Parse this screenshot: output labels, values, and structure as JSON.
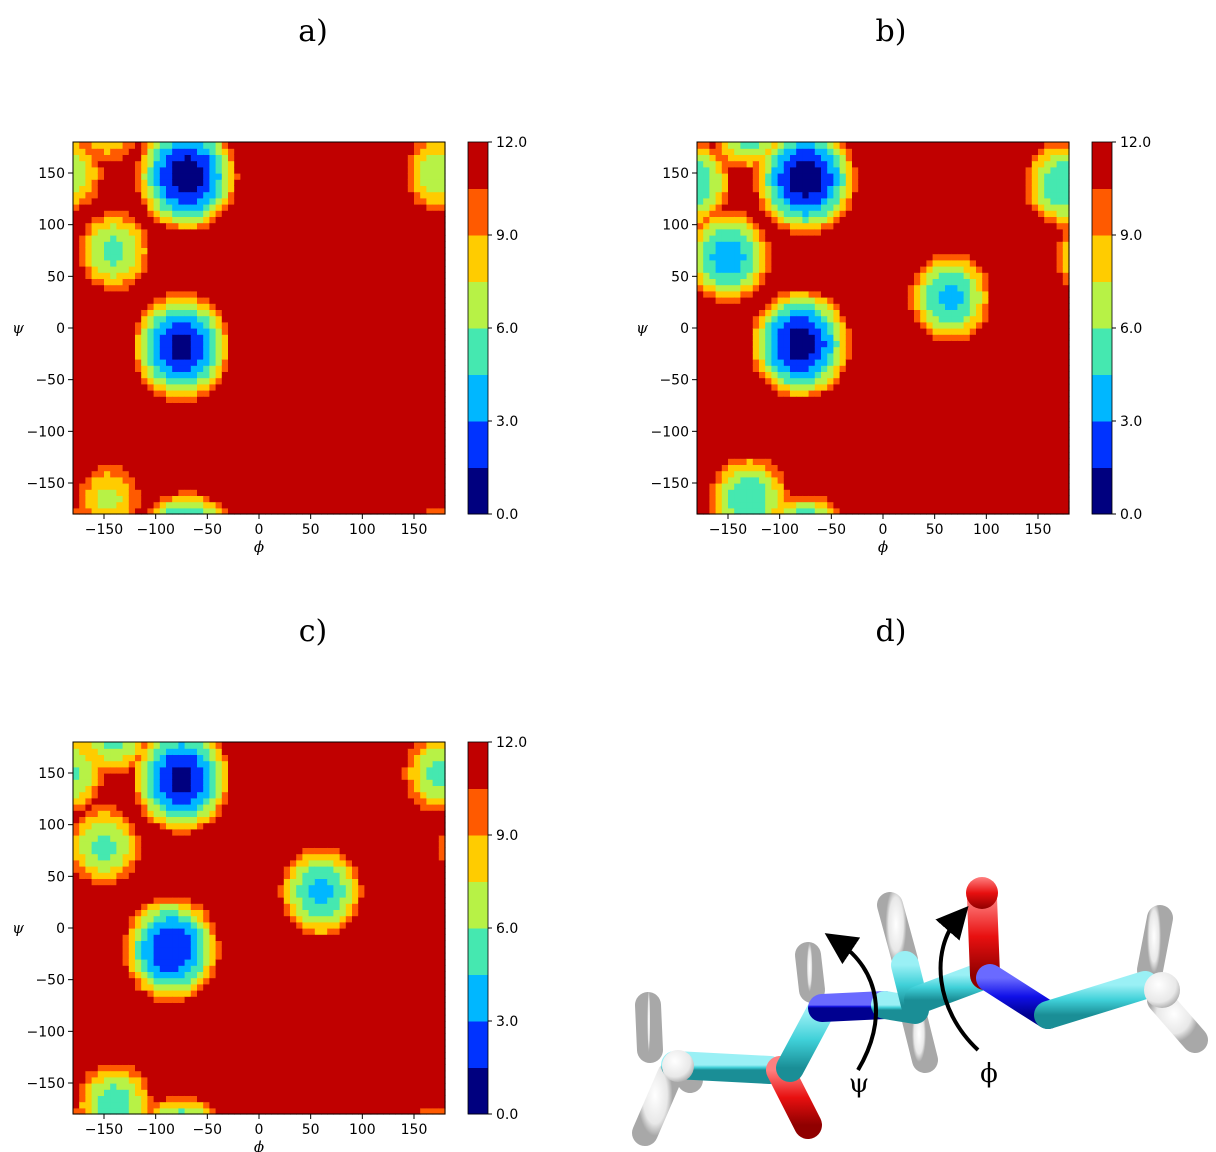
{
  "panel_labels": [
    "a)",
    "b)",
    "c)",
    "d)"
  ],
  "chart_data": [
    {
      "type": "heatmap",
      "panel": "a)",
      "xlabel": "ϕ",
      "ylabel": "ψ",
      "xlim": [
        -180,
        180
      ],
      "ylim": [
        -180,
        180
      ],
      "xticks": [
        -150,
        -100,
        -50,
        0,
        50,
        100,
        150
      ],
      "yticks": [
        -150,
        -100,
        -50,
        0,
        50,
        100,
        150
      ],
      "colorbar": {
        "min": 0.0,
        "max": 12.0,
        "levels": [
          0,
          1.5,
          3,
          4.5,
          6,
          7.5,
          9,
          10.5,
          12
        ],
        "tick_labels": [
          "0.0",
          "3.0",
          "6.0",
          "9.0",
          "12.0"
        ]
      },
      "background_value": 12.0,
      "basins": [
        {
          "phi": -70,
          "psi": 148,
          "min": 0.5
        },
        {
          "phi": -75,
          "psi": -18,
          "min": 1.0
        },
        {
          "phi": -140,
          "psi": 75,
          "min": 5.5
        },
        {
          "phi": 175,
          "psi": 150,
          "min": 6.0
        },
        {
          "phi": -145,
          "psi": -165,
          "min": 7.0
        }
      ]
    },
    {
      "type": "heatmap",
      "panel": "b)",
      "xlabel": "ϕ",
      "ylabel": "ψ",
      "xlim": [
        -180,
        180
      ],
      "ylim": [
        -180,
        180
      ],
      "xticks": [
        -150,
        -100,
        -50,
        0,
        50,
        100,
        150
      ],
      "yticks": [
        -150,
        -100,
        -50,
        0,
        50,
        100,
        150
      ],
      "colorbar": {
        "min": 0.0,
        "max": 12.0,
        "levels": [
          0,
          1.5,
          3,
          4.5,
          6,
          7.5,
          9,
          10.5,
          12
        ],
        "tick_labels": [
          "0.0",
          "3.0",
          "6.0",
          "9.0",
          "12.0"
        ]
      },
      "background_value": 12.0,
      "basins": [
        {
          "phi": -75,
          "psi": 145,
          "min": 0.5
        },
        {
          "phi": -80,
          "psi": -15,
          "min": 0.8
        },
        {
          "phi": -150,
          "psi": 70,
          "min": 3.5
        },
        {
          "phi": 65,
          "psi": 30,
          "min": 4.0
        },
        {
          "phi": 175,
          "psi": 140,
          "min": 4.5
        },
        {
          "phi": -130,
          "psi": -165,
          "min": 4.5
        }
      ]
    },
    {
      "type": "heatmap",
      "panel": "c)",
      "xlabel": "ϕ",
      "ylabel": "ψ",
      "xlim": [
        -180,
        180
      ],
      "ylim": [
        -180,
        180
      ],
      "xticks": [
        -150,
        -100,
        -50,
        0,
        50,
        100,
        150
      ],
      "yticks": [
        -150,
        -100,
        -50,
        0,
        50,
        100,
        150
      ],
      "colorbar": {
        "min": 0.0,
        "max": 12.0,
        "levels": [
          0,
          1.5,
          3,
          4.5,
          6,
          7.5,
          9,
          10.5,
          12
        ],
        "tick_labels": [
          "0.0",
          "3.0",
          "6.0",
          "9.0",
          "12.0"
        ]
      },
      "background_value": 12.0,
      "basins": [
        {
          "phi": -75,
          "psi": 145,
          "min": 1.0
        },
        {
          "phi": -85,
          "psi": -20,
          "min": 1.5
        },
        {
          "phi": -150,
          "psi": 80,
          "min": 5.5
        },
        {
          "phi": 60,
          "psi": 35,
          "min": 4.0
        },
        {
          "phi": 175,
          "psi": 150,
          "min": 5.5
        },
        {
          "phi": -140,
          "psi": -170,
          "min": 5.0
        }
      ]
    }
  ],
  "molecule": {
    "angle_labels": [
      "ψ",
      "ϕ"
    ],
    "colors": {
      "carbon": "#3fd0d8",
      "nitrogen": "#1010e8",
      "oxygen": "#e81010",
      "hydrogen": "#f2f2f2"
    }
  },
  "colors": {
    "colormap": [
      "#00007f",
      "#0033ff",
      "#00b7ff",
      "#45e8b0",
      "#b7f246",
      "#ffcc00",
      "#ff5a00",
      "#c00000"
    ]
  }
}
